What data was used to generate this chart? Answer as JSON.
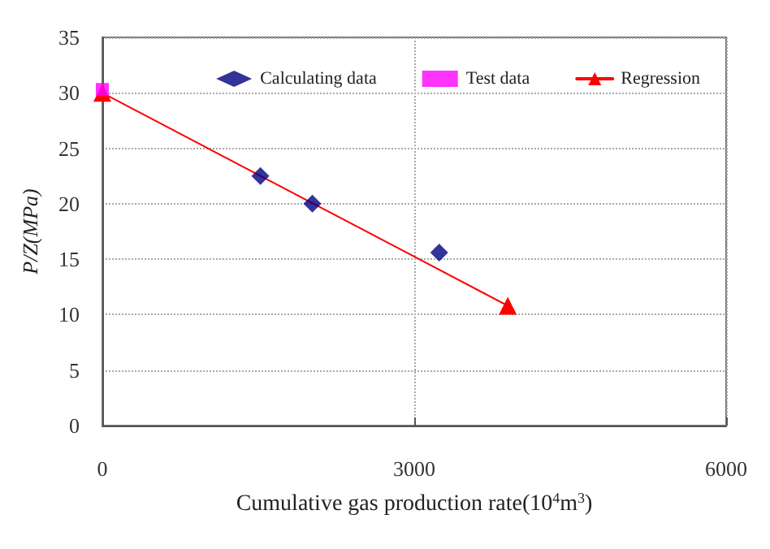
{
  "chart_data": {
    "type": "scatter",
    "xlabel": "Cumulative gas production rate(10$^{4}$m$^{3}$)",
    "ylabel": "P/Z(MPa)",
    "series": [
      {
        "name": "Calculating data",
        "color": "#000080",
        "marker": "diamond",
        "x": [
          1520,
          2020,
          3240
        ],
        "values": [
          22.5,
          20.0,
          15.6
        ]
      },
      {
        "name": "Test data",
        "color": "#ff00ff",
        "marker": "square",
        "x": [
          0
        ],
        "values": [
          30.3
        ]
      },
      {
        "name": "Regression",
        "type": "line",
        "color": "#ff0000",
        "marker": "triangle",
        "line_style": "solid",
        "x": [
          0,
          3900
        ],
        "values": [
          30,
          10.8
        ]
      }
    ],
    "xlim": [
      0,
      6000
    ],
    "xticks": [
      0,
      3000,
      6000
    ],
    "ylim": [
      0,
      35
    ],
    "yticks": [
      0,
      5,
      10,
      15,
      20,
      25,
      30,
      35
    ],
    "grid": true,
    "legend": "top right"
  }
}
